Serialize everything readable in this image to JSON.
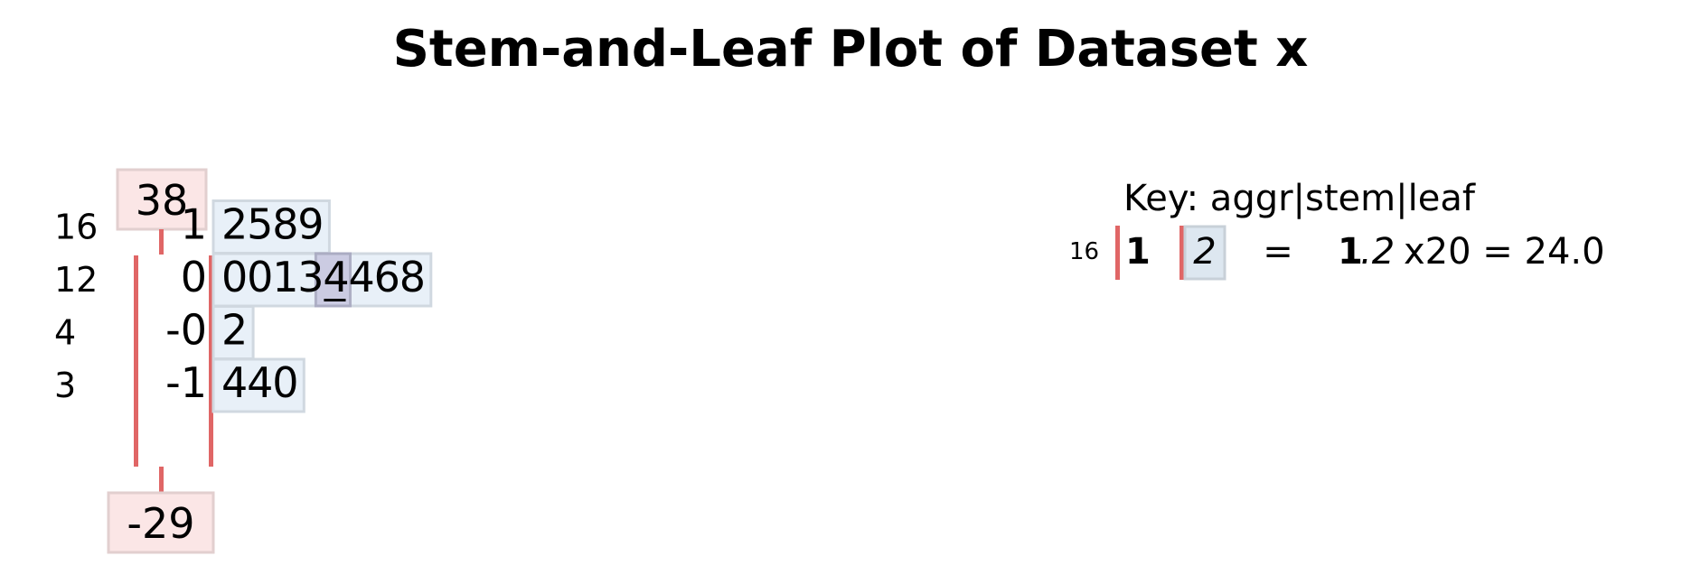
{
  "title": "Stem-and-Leaf Plot of Dataset x",
  "chart_data": {
    "type": "stem-and-leaf",
    "max_value": "38",
    "min_value": "-29",
    "rows": [
      {
        "aggr": "16",
        "stem": "1",
        "leaves": "2589"
      },
      {
        "aggr": "12",
        "stem": "0",
        "leaves": "00134468"
      },
      {
        "aggr": "4",
        "stem": "-0",
        "leaves": "2"
      },
      {
        "aggr": "3",
        "stem": "-1",
        "leaves": "440"
      }
    ],
    "median_row": 1,
    "median_leaf_index": 4,
    "key": {
      "heading": "Key: aggr|stem|leaf",
      "aggr": "16",
      "stem": "1",
      "leaf": "2",
      "equals": "=",
      "value_stem": "1",
      "value_leaf": ".2",
      "multiplier": "x20 = 24.0"
    },
    "colors": {
      "stem_bar": "#e06666",
      "leaf_box_fill": "#e8f0f8",
      "leaf_box_stroke": "#d0d8e0",
      "extreme_box_fill": "#fbe6e6",
      "extreme_box_stroke": "#e2cfcf",
      "median_fill": "#c8c8e0",
      "median_stroke": "#a8a8c0"
    }
  }
}
